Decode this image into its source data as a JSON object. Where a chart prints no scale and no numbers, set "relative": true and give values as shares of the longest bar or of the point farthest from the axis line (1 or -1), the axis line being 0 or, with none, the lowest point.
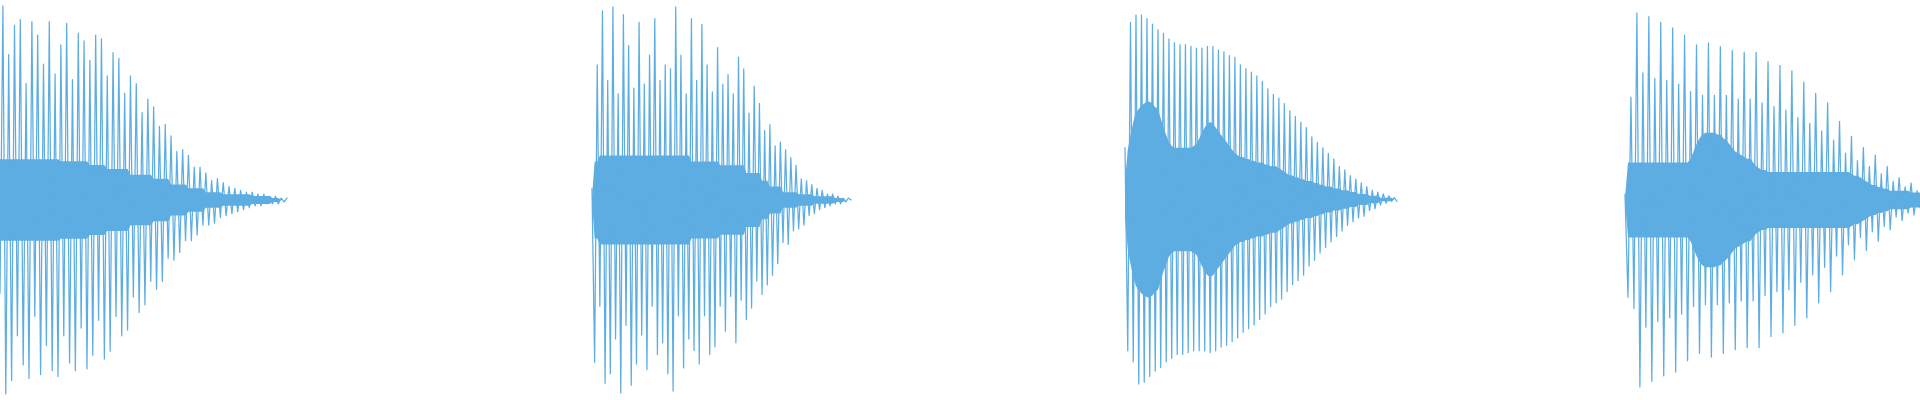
{
  "chart_data": [
    {
      "type": "line",
      "relative": true,
      "categories": [
        null,
        null,
        null,
        null,
        null,
        null,
        null,
        null,
        null,
        null,
        null,
        null,
        null,
        null,
        null,
        null,
        null,
        null,
        null,
        null,
        null,
        null,
        null,
        null,
        null,
        null,
        null,
        null,
        null,
        null,
        null,
        null,
        null,
        null,
        null,
        null,
        null,
        null,
        null,
        null,
        null,
        null,
        null,
        null,
        null,
        null,
        null,
        null,
        null,
        null,
        null,
        null,
        null,
        null,
        null,
        null,
        null,
        null,
        null,
        null,
        null,
        null,
        null,
        null,
        null,
        null,
        null,
        null,
        null,
        null,
        null,
        null,
        null,
        null,
        null,
        null,
        null,
        null,
        null,
        null,
        null,
        null,
        null,
        null,
        null,
        null,
        null,
        null,
        null,
        null,
        null,
        null,
        null,
        null,
        null,
        null,
        null,
        null,
        null,
        null
      ],
      "series": [
        {
          "color": "#5dade2",
          "values": [
            0.26,
            1.0,
            0.0,
            0.875,
            0.035,
            0.95,
            0.15,
            0.965,
            0.075,
            0.8,
            0.04,
            0.96,
            0.2,
            0.925,
            0.05,
            0.85,
            0.125,
            0.96,
            0.06,
            0.825,
            0.045,
            0.9,
            0.15,
            0.955,
            0.08,
            0.81,
            0.06,
            0.93,
            0.17,
            0.91,
            0.065,
            0.86,
            0.1,
            0.925,
            0.19,
            0.915,
            0.09,
            0.82,
            0.11,
            0.88,
            0.2,
            0.865,
            0.15,
            0.775,
            0.165,
            0.82,
            0.25,
            0.8,
            0.21,
            0.725,
            0.23,
            0.76,
            0.29,
            0.74,
            0.27,
            0.69,
            0.29,
            0.695,
            0.35,
            0.665,
            0.345,
            0.625,
            0.365,
            0.63,
            0.395,
            0.615,
            0.395,
            0.585,
            0.41,
            0.585,
            0.435,
            0.57,
            0.435,
            0.55,
            0.44,
            0.555,
            0.455,
            0.545,
            0.46,
            0.535,
            0.465,
            0.53,
            0.47,
            0.525,
            0.475,
            0.52,
            0.48,
            0.52,
            0.485,
            0.515,
            0.485,
            0.515,
            0.49,
            0.51,
            0.49,
            0.51,
            0.49,
            0.505,
            0.495,
            0.505
          ],
          "upper": [
            0.605,
            0.605,
            0.605,
            0.605,
            0.605,
            0.605,
            0.605,
            0.605,
            0.605,
            0.605,
            0.605,
            0.605,
            0.605,
            0.605,
            0.605,
            0.605,
            0.605,
            0.605,
            0.605,
            0.605,
            0.605,
            0.6,
            0.6,
            0.6,
            0.6,
            0.6,
            0.6,
            0.6,
            0.6,
            0.6,
            0.6,
            0.59,
            0.59,
            0.59,
            0.59,
            0.59,
            0.59,
            0.58,
            0.58,
            0.58,
            0.58,
            0.58,
            0.58,
            0.58,
            0.58,
            0.565,
            0.565,
            0.565,
            0.565,
            0.565,
            0.565,
            0.565,
            0.565,
            0.555,
            0.555,
            0.555,
            0.555,
            0.555,
            0.555,
            0.54,
            0.54,
            0.54,
            0.54,
            0.54,
            0.54,
            0.53,
            0.53,
            0.53,
            0.53,
            0.53,
            0.53,
            0.52,
            0.52,
            0.52,
            0.52,
            0.52,
            0.52,
            0.515,
            0.515,
            0.515,
            0.515,
            0.515,
            0.515,
            0.515,
            0.515,
            0.515,
            0.515,
            0.51,
            0.51,
            0.51,
            0.51,
            0.51,
            0.51,
            0.51,
            0.505,
            0.505,
            0.505,
            0.5,
            0.5,
            0.5
          ],
          "lower": [
            0.395,
            0.395,
            0.395,
            0.395,
            0.395,
            0.395,
            0.395,
            0.395,
            0.395,
            0.395,
            0.395,
            0.395,
            0.395,
            0.395,
            0.395,
            0.395,
            0.395,
            0.395,
            0.395,
            0.395,
            0.395,
            0.4,
            0.4,
            0.4,
            0.4,
            0.4,
            0.4,
            0.4,
            0.4,
            0.4,
            0.4,
            0.41,
            0.41,
            0.41,
            0.41,
            0.41,
            0.41,
            0.42,
            0.42,
            0.42,
            0.42,
            0.42,
            0.42,
            0.42,
            0.42,
            0.435,
            0.435,
            0.435,
            0.435,
            0.435,
            0.435,
            0.435,
            0.435,
            0.445,
            0.445,
            0.445,
            0.445,
            0.445,
            0.445,
            0.46,
            0.46,
            0.46,
            0.46,
            0.46,
            0.46,
            0.47,
            0.47,
            0.47,
            0.47,
            0.47,
            0.47,
            0.48,
            0.48,
            0.48,
            0.48,
            0.48,
            0.48,
            0.485,
            0.485,
            0.485,
            0.485,
            0.485,
            0.485,
            0.485,
            0.485,
            0.485,
            0.485,
            0.49,
            0.49,
            0.49,
            0.49,
            0.49,
            0.49,
            0.49,
            0.495,
            0.495,
            0.495,
            0.5,
            0.5,
            0.5
          ]
        }
      ]
    },
    {
      "type": "line",
      "relative": true,
      "categories": [
        null,
        null,
        null,
        null,
        null,
        null,
        null,
        null,
        null,
        null,
        null,
        null,
        null,
        null,
        null,
        null,
        null,
        null,
        null,
        null,
        null,
        null,
        null,
        null,
        null,
        null,
        null,
        null,
        null,
        null,
        null,
        null,
        null,
        null,
        null,
        null,
        null,
        null,
        null,
        null,
        null,
        null,
        null,
        null,
        null,
        null,
        null,
        null,
        null,
        null,
        null,
        null,
        null,
        null,
        null,
        null,
        null,
        null,
        null,
        null,
        null,
        null,
        null,
        null,
        null,
        null,
        null,
        null,
        null,
        null,
        null,
        null,
        null,
        null,
        null,
        null,
        null,
        null,
        null,
        null,
        null,
        null,
        null,
        null,
        null,
        null,
        null,
        null,
        null,
        null,
        null,
        null,
        null,
        null,
        null,
        null,
        null,
        null,
        null,
        null
      ],
      "series": [
        {
          "color": "#5dade2",
          "values": [
            0.53,
            0.08,
            0.85,
            0.225,
            0.99,
            0.025,
            0.81,
            0.05,
            1.0,
            0.14,
            0.775,
            0.0,
            0.98,
            0.175,
            0.9,
            0.02,
            0.79,
            0.075,
            0.96,
            0.15,
            0.8,
            0.06,
            0.875,
            0.225,
            0.97,
            0.1,
            0.81,
            0.13,
            0.85,
            0.05,
            0.84,
            0.005,
            1.0,
            0.2,
            0.875,
            0.065,
            0.775,
            0.14,
            0.97,
            0.11,
            0.81,
            0.075,
            0.955,
            0.2,
            0.85,
            0.1,
            0.78,
            0.12,
            0.895,
            0.225,
            0.8,
            0.16,
            0.825,
            0.25,
            0.775,
            0.13,
            0.87,
            0.24,
            0.84,
            0.19,
            0.725,
            0.22,
            0.795,
            0.29,
            0.75,
            0.255,
            0.68,
            0.28,
            0.695,
            0.305,
            0.64,
            0.335,
            0.65,
            0.39,
            0.63,
            0.385,
            0.61,
            0.42,
            0.59,
            0.425,
            0.555,
            0.435,
            0.55,
            0.46,
            0.54,
            0.465,
            0.53,
            0.475,
            0.525,
            0.48,
            0.515,
            0.485,
            0.515,
            0.49,
            0.51,
            0.49,
            0.505,
            0.495,
            0.505,
            0.5
          ],
          "upper": [
            0.505,
            0.6,
            0.6,
            0.615,
            0.615,
            0.615,
            0.615,
            0.615,
            0.615,
            0.615,
            0.615,
            0.615,
            0.615,
            0.615,
            0.615,
            0.615,
            0.615,
            0.615,
            0.615,
            0.615,
            0.615,
            0.615,
            0.615,
            0.615,
            0.615,
            0.615,
            0.615,
            0.615,
            0.615,
            0.615,
            0.615,
            0.615,
            0.615,
            0.615,
            0.615,
            0.615,
            0.615,
            0.615,
            0.6,
            0.6,
            0.6,
            0.6,
            0.6,
            0.6,
            0.6,
            0.6,
            0.6,
            0.6,
            0.6,
            0.59,
            0.59,
            0.59,
            0.59,
            0.59,
            0.59,
            0.59,
            0.59,
            0.59,
            0.59,
            0.57,
            0.57,
            0.57,
            0.57,
            0.57,
            0.57,
            0.55,
            0.55,
            0.55,
            0.535,
            0.535,
            0.535,
            0.535,
            0.535,
            0.52,
            0.52,
            0.52,
            0.52,
            0.52,
            0.52,
            0.515,
            0.515,
            0.515,
            0.515,
            0.515,
            0.515,
            0.51,
            0.51,
            0.51,
            0.51,
            0.51,
            0.51,
            0.51,
            0.51,
            0.505,
            0.505,
            0.505,
            0.505,
            0.5,
            0.5,
            0.5
          ],
          "lower": [
            0.495,
            0.4,
            0.4,
            0.385,
            0.385,
            0.385,
            0.385,
            0.385,
            0.385,
            0.385,
            0.385,
            0.385,
            0.385,
            0.385,
            0.385,
            0.385,
            0.385,
            0.385,
            0.385,
            0.385,
            0.385,
            0.385,
            0.385,
            0.385,
            0.385,
            0.385,
            0.385,
            0.385,
            0.385,
            0.385,
            0.385,
            0.385,
            0.385,
            0.385,
            0.385,
            0.385,
            0.385,
            0.385,
            0.4,
            0.4,
            0.4,
            0.4,
            0.4,
            0.4,
            0.4,
            0.4,
            0.4,
            0.4,
            0.4,
            0.41,
            0.41,
            0.41,
            0.41,
            0.41,
            0.41,
            0.41,
            0.41,
            0.41,
            0.41,
            0.43,
            0.43,
            0.43,
            0.43,
            0.43,
            0.43,
            0.45,
            0.45,
            0.45,
            0.465,
            0.465,
            0.465,
            0.465,
            0.465,
            0.48,
            0.48,
            0.48,
            0.48,
            0.48,
            0.48,
            0.485,
            0.485,
            0.485,
            0.485,
            0.485,
            0.485,
            0.49,
            0.49,
            0.49,
            0.49,
            0.49,
            0.49,
            0.49,
            0.49,
            0.495,
            0.495,
            0.495,
            0.495,
            0.5,
            0.5,
            0.5
          ]
        }
      ]
    },
    {
      "type": "line",
      "relative": true,
      "categories": [
        null,
        null,
        null,
        null,
        null,
        null,
        null,
        null,
        null,
        null,
        null,
        null,
        null,
        null,
        null,
        null,
        null,
        null,
        null,
        null,
        null,
        null,
        null,
        null,
        null,
        null,
        null,
        null,
        null,
        null,
        null,
        null,
        null,
        null,
        null,
        null,
        null,
        null,
        null,
        null,
        null,
        null,
        null,
        null,
        null,
        null,
        null,
        null,
        null,
        null,
        null,
        null,
        null,
        null,
        null,
        null,
        null,
        null,
        null,
        null,
        null,
        null,
        null,
        null,
        null,
        null,
        null,
        null,
        null,
        null,
        null,
        null,
        null,
        null,
        null,
        null,
        null,
        null,
        null,
        null,
        null,
        null,
        null,
        null,
        null,
        null,
        null,
        null,
        null,
        null,
        null,
        null,
        null,
        null,
        null,
        null,
        null,
        null,
        null,
        null
      ],
      "series": [
        {
          "color": "#5dade2",
          "values": [
            0.64,
            0.09,
            0.98,
            0.06,
            1.0,
            0.0,
            1.0,
            0.005,
            0.99,
            0.02,
            0.975,
            0.035,
            0.96,
            0.045,
            0.95,
            0.06,
            0.935,
            0.07,
            0.925,
            0.08,
            0.92,
            0.08,
            0.92,
            0.085,
            0.915,
            0.09,
            0.91,
            0.09,
            0.91,
            0.09,
            0.915,
            0.085,
            0.915,
            0.09,
            0.905,
            0.1,
            0.9,
            0.105,
            0.89,
            0.115,
            0.885,
            0.125,
            0.865,
            0.14,
            0.855,
            0.15,
            0.845,
            0.16,
            0.835,
            0.175,
            0.82,
            0.19,
            0.8,
            0.21,
            0.785,
            0.22,
            0.775,
            0.23,
            0.76,
            0.25,
            0.74,
            0.27,
            0.725,
            0.28,
            0.71,
            0.295,
            0.695,
            0.32,
            0.67,
            0.335,
            0.655,
            0.355,
            0.64,
            0.37,
            0.625,
            0.385,
            0.61,
            0.4,
            0.59,
            0.415,
            0.58,
            0.43,
            0.565,
            0.44,
            0.555,
            0.45,
            0.545,
            0.455,
            0.535,
            0.47,
            0.525,
            0.475,
            0.52,
            0.485,
            0.515,
            0.49,
            0.51,
            0.495,
            0.505,
            0.495
          ],
          "upper": [
            0.55,
            0.635,
            0.675,
            0.71,
            0.735,
            0.745,
            0.755,
            0.76,
            0.765,
            0.765,
            0.76,
            0.75,
            0.745,
            0.72,
            0.695,
            0.675,
            0.655,
            0.645,
            0.64,
            0.64,
            0.64,
            0.64,
            0.64,
            0.64,
            0.64,
            0.645,
            0.65,
            0.665,
            0.68,
            0.695,
            0.705,
            0.71,
            0.705,
            0.695,
            0.685,
            0.675,
            0.665,
            0.655,
            0.645,
            0.635,
            0.625,
            0.62,
            0.615,
            0.615,
            0.61,
            0.61,
            0.605,
            0.605,
            0.6,
            0.6,
            0.6,
            0.595,
            0.595,
            0.59,
            0.59,
            0.59,
            0.585,
            0.58,
            0.575,
            0.57,
            0.565,
            0.565,
            0.56,
            0.56,
            0.555,
            0.555,
            0.55,
            0.55,
            0.55,
            0.545,
            0.545,
            0.54,
            0.54,
            0.535,
            0.535,
            0.535,
            0.53,
            0.53,
            0.53,
            0.525,
            0.525,
            0.525,
            0.52,
            0.52,
            0.52,
            0.515,
            0.515,
            0.515,
            0.515,
            0.51,
            0.51,
            0.51,
            0.51,
            0.505,
            0.505,
            0.505,
            0.505,
            0.505,
            0.5,
            0.5
          ],
          "lower": [
            0.45,
            0.365,
            0.325,
            0.29,
            0.265,
            0.255,
            0.245,
            0.24,
            0.235,
            0.235,
            0.24,
            0.25,
            0.255,
            0.28,
            0.305,
            0.325,
            0.345,
            0.355,
            0.36,
            0.36,
            0.36,
            0.36,
            0.36,
            0.36,
            0.36,
            0.355,
            0.35,
            0.335,
            0.32,
            0.305,
            0.295,
            0.29,
            0.295,
            0.305,
            0.315,
            0.325,
            0.335,
            0.345,
            0.355,
            0.365,
            0.375,
            0.38,
            0.385,
            0.385,
            0.39,
            0.39,
            0.395,
            0.395,
            0.4,
            0.4,
            0.4,
            0.405,
            0.405,
            0.41,
            0.41,
            0.41,
            0.415,
            0.42,
            0.425,
            0.43,
            0.435,
            0.435,
            0.44,
            0.44,
            0.445,
            0.445,
            0.45,
            0.45,
            0.45,
            0.455,
            0.455,
            0.46,
            0.46,
            0.465,
            0.465,
            0.465,
            0.47,
            0.47,
            0.47,
            0.475,
            0.475,
            0.475,
            0.48,
            0.48,
            0.48,
            0.485,
            0.485,
            0.485,
            0.485,
            0.49,
            0.49,
            0.49,
            0.49,
            0.495,
            0.495,
            0.495,
            0.495,
            0.495,
            0.5,
            0.5
          ]
        }
      ]
    },
    {
      "type": "line",
      "relative": true,
      "categories": [
        null,
        null,
        null,
        null,
        null,
        null,
        null,
        null,
        null,
        null,
        null,
        null,
        null,
        null,
        null,
        null,
        null,
        null,
        null,
        null,
        null,
        null,
        null,
        null,
        null,
        null,
        null,
        null,
        null,
        null,
        null,
        null,
        null,
        null,
        null,
        null,
        null,
        null,
        null,
        null,
        null,
        null,
        null,
        null,
        null,
        null,
        null,
        null,
        null,
        null,
        null,
        null,
        null,
        null,
        null,
        null,
        null,
        null,
        null,
        null,
        null,
        null,
        null,
        null,
        null,
        null,
        null,
        null,
        null,
        null,
        null,
        null,
        null,
        null,
        null,
        null,
        null,
        null,
        null,
        null,
        null,
        null,
        null,
        null,
        null,
        null,
        null,
        null,
        null,
        null,
        null,
        null,
        null,
        null,
        null,
        null,
        null,
        null,
        null,
        null
      ],
      "series": [
        {
          "color": "#5dade2",
          "values": [
            0.515,
            0.24,
            0.775,
            0.21,
            1.0,
            0.0,
            0.84,
            0.16,
            0.99,
            0.015,
            0.825,
            0.175,
            0.975,
            0.03,
            0.82,
            0.185,
            0.96,
            0.04,
            0.81,
            0.195,
            0.94,
            0.07,
            0.79,
            0.215,
            0.915,
            0.09,
            0.78,
            0.22,
            0.92,
            0.08,
            0.78,
            0.22,
            0.91,
            0.09,
            0.78,
            0.225,
            0.9,
            0.1,
            0.77,
            0.23,
            0.895,
            0.105,
            0.77,
            0.23,
            0.895,
            0.105,
            0.76,
            0.245,
            0.87,
            0.135,
            0.75,
            0.255,
            0.86,
            0.145,
            0.74,
            0.26,
            0.845,
            0.165,
            0.72,
            0.28,
            0.815,
            0.185,
            0.705,
            0.3,
            0.785,
            0.225,
            0.685,
            0.32,
            0.76,
            0.255,
            0.66,
            0.35,
            0.71,
            0.3,
            0.625,
            0.38,
            0.67,
            0.34,
            0.605,
            0.4,
            0.64,
            0.365,
            0.59,
            0.415,
            0.62,
            0.39,
            0.57,
            0.43,
            0.59,
            0.42,
            0.55,
            0.455,
            0.56,
            0.445,
            0.535,
            0.465,
            0.545,
            0.46,
            0.525,
            0.48
          ],
          "upper": [
            0.505,
            0.6,
            0.6,
            0.6,
            0.6,
            0.6,
            0.6,
            0.6,
            0.6,
            0.6,
            0.6,
            0.6,
            0.6,
            0.6,
            0.6,
            0.6,
            0.6,
            0.6,
            0.6,
            0.6,
            0.6,
            0.6,
            0.61,
            0.63,
            0.65,
            0.665,
            0.675,
            0.68,
            0.68,
            0.68,
            0.68,
            0.675,
            0.675,
            0.665,
            0.66,
            0.65,
            0.64,
            0.63,
            0.625,
            0.62,
            0.615,
            0.61,
            0.61,
            0.6,
            0.59,
            0.585,
            0.58,
            0.58,
            0.575,
            0.575,
            0.575,
            0.575,
            0.575,
            0.575,
            0.575,
            0.575,
            0.575,
            0.575,
            0.575,
            0.575,
            0.575,
            0.575,
            0.575,
            0.575,
            0.575,
            0.575,
            0.575,
            0.575,
            0.575,
            0.575,
            0.575,
            0.575,
            0.575,
            0.575,
            0.575,
            0.575,
            0.57,
            0.565,
            0.565,
            0.56,
            0.555,
            0.55,
            0.545,
            0.54,
            0.54,
            0.535,
            0.535,
            0.53,
            0.53,
            0.525,
            0.525,
            0.525,
            0.525,
            0.525,
            0.525,
            0.525,
            0.52,
            0.52,
            0.52,
            0.52
          ],
          "lower": [
            0.495,
            0.4,
            0.4,
            0.4,
            0.4,
            0.4,
            0.4,
            0.4,
            0.4,
            0.4,
            0.4,
            0.4,
            0.4,
            0.4,
            0.4,
            0.4,
            0.4,
            0.4,
            0.4,
            0.4,
            0.4,
            0.4,
            0.39,
            0.37,
            0.35,
            0.335,
            0.325,
            0.32,
            0.32,
            0.32,
            0.32,
            0.325,
            0.325,
            0.335,
            0.34,
            0.35,
            0.36,
            0.37,
            0.375,
            0.38,
            0.385,
            0.39,
            0.39,
            0.4,
            0.41,
            0.415,
            0.42,
            0.42,
            0.425,
            0.425,
            0.425,
            0.425,
            0.425,
            0.425,
            0.425,
            0.425,
            0.425,
            0.425,
            0.425,
            0.425,
            0.425,
            0.425,
            0.425,
            0.425,
            0.425,
            0.425,
            0.425,
            0.425,
            0.425,
            0.425,
            0.425,
            0.425,
            0.425,
            0.425,
            0.425,
            0.425,
            0.43,
            0.435,
            0.435,
            0.44,
            0.445,
            0.45,
            0.455,
            0.46,
            0.46,
            0.465,
            0.465,
            0.47,
            0.47,
            0.475,
            0.475,
            0.475,
            0.475,
            0.475,
            0.475,
            0.475,
            0.48,
            0.48,
            0.48,
            0.48
          ]
        }
      ]
    }
  ]
}
